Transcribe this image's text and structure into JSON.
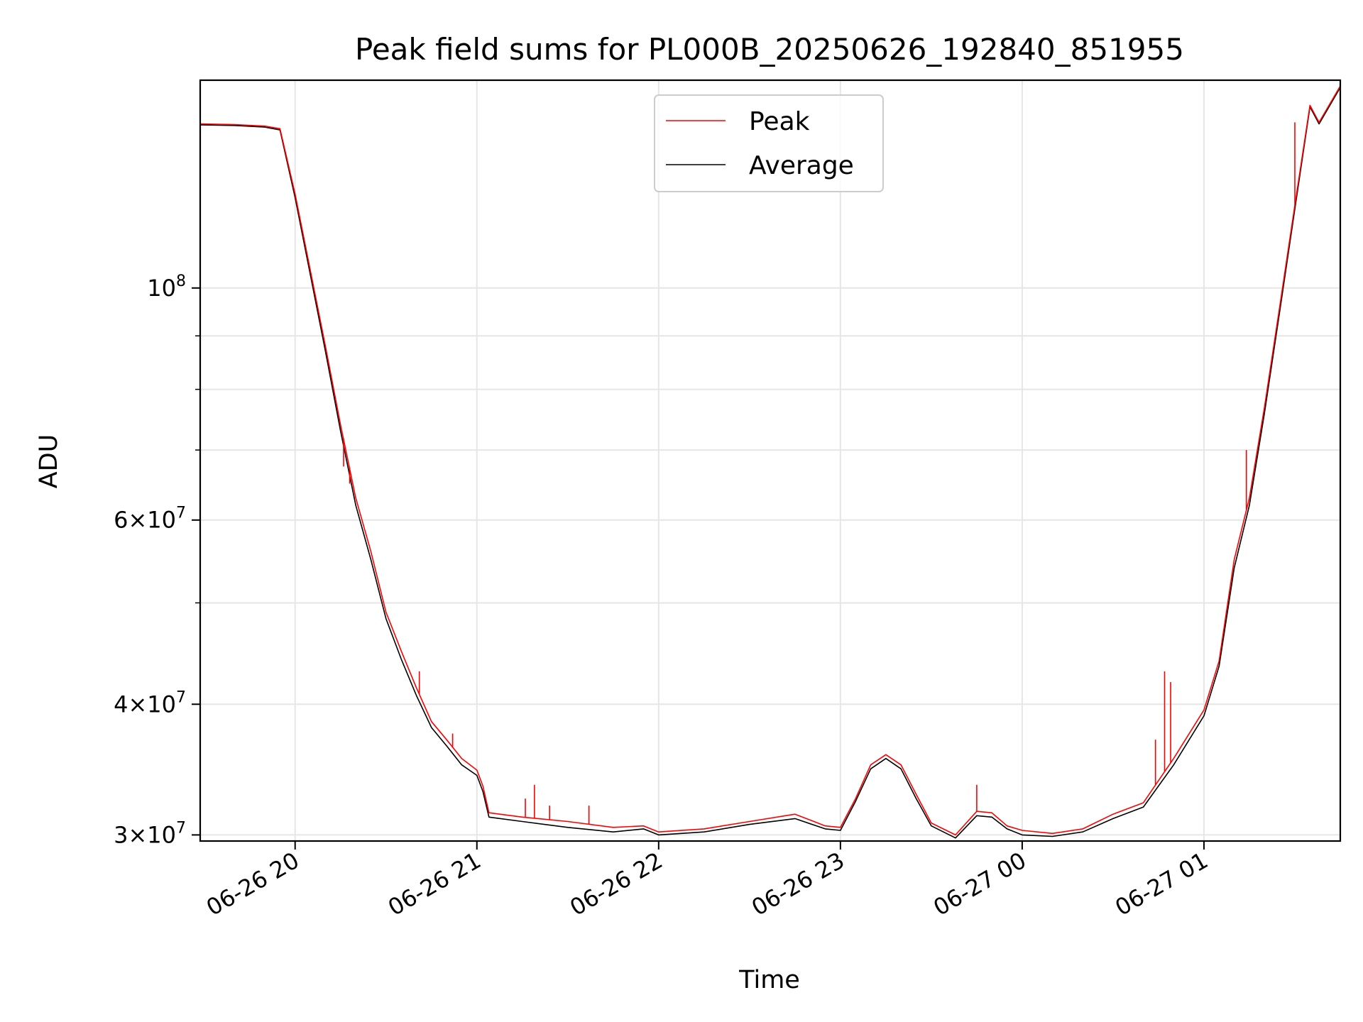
{
  "chart_data": {
    "type": "line",
    "title": "Peak field sums for PL000B_20250626_192840_851955",
    "xlabel": "Time",
    "ylabel": "ADU",
    "yscale": "log",
    "grid": true,
    "legend_position": "upper center",
    "x_range": [
      "2025-06-26 19:28:40",
      "2025-06-27 01:45:00"
    ],
    "ylim": [
      29600000,
      158000000
    ],
    "x_ticks": [
      {
        "time": "2025-06-26 20:00",
        "label": "06-26 20"
      },
      {
        "time": "2025-06-26 21:00",
        "label": "06-26 21"
      },
      {
        "time": "2025-06-26 22:00",
        "label": "06-26 22"
      },
      {
        "time": "2025-06-26 23:00",
        "label": "06-26 23"
      },
      {
        "time": "2025-06-27 00:00",
        "label": "06-27 00"
      },
      {
        "time": "2025-06-27 01:00",
        "label": "06-27 01"
      }
    ],
    "y_ticks": [
      {
        "value": 30000000,
        "base": "3",
        "exp": "7"
      },
      {
        "value": 40000000,
        "base": "4",
        "exp": "7"
      },
      {
        "value": 60000000,
        "base": "6",
        "exp": "7"
      },
      {
        "value": 100000000,
        "base": "",
        "exp": "8"
      }
    ],
    "y_minor_ticks": [
      50000000,
      70000000,
      80000000,
      90000000
    ],
    "series": [
      {
        "name": "Peak",
        "color": "#ff0000",
        "points": [
          [
            "2025-06-26 19:28:40",
            143.5
          ],
          [
            "2025-06-26 19:40",
            143.3
          ],
          [
            "2025-06-26 19:50",
            142.8
          ],
          [
            "2025-06-26 19:55",
            142.0
          ],
          [
            "2025-06-26 20:00",
            123
          ],
          [
            "2025-06-26 20:05",
            104
          ],
          [
            "2025-06-26 20:10",
            88
          ],
          [
            "2025-06-26 20:15",
            74
          ],
          [
            "2025-06-26 20:20",
            63
          ],
          [
            "2025-06-26 20:25",
            56
          ],
          [
            "2025-06-26 20:30",
            49
          ],
          [
            "2025-06-26 20:35",
            45
          ],
          [
            "2025-06-26 20:40",
            41.5
          ],
          [
            "2025-06-26 20:45",
            38.5
          ],
          [
            "2025-06-26 20:50",
            37.0
          ],
          [
            "2025-06-26 20:55",
            35.5
          ],
          [
            "2025-06-26 21:00",
            34.6
          ],
          [
            "2025-06-26 21:02",
            33.4
          ],
          [
            "2025-06-26 21:04",
            31.5
          ],
          [
            "2025-06-26 21:15",
            31.2
          ],
          [
            "2025-06-26 21:30",
            30.9
          ],
          [
            "2025-06-26 21:45",
            30.5
          ],
          [
            "2025-06-26 21:55",
            30.6
          ],
          [
            "2025-06-26 22:00",
            30.2
          ],
          [
            "2025-06-26 22:15",
            30.4
          ],
          [
            "2025-06-26 22:30",
            30.9
          ],
          [
            "2025-06-26 22:45",
            31.4
          ],
          [
            "2025-06-26 22:55",
            30.6
          ],
          [
            "2025-06-26 23:00",
            30.5
          ],
          [
            "2025-06-26 23:05",
            32.5
          ],
          [
            "2025-06-26 23:10",
            35.0
          ],
          [
            "2025-06-26 23:15",
            35.8
          ],
          [
            "2025-06-26 23:20",
            35.0
          ],
          [
            "2025-06-26 23:25",
            32.8
          ],
          [
            "2025-06-26 23:30",
            30.8
          ],
          [
            "2025-06-26 23:38",
            30.0
          ],
          [
            "2025-06-26 23:45",
            31.6
          ],
          [
            "2025-06-26 23:50",
            31.5
          ],
          [
            "2025-06-26 23:55",
            30.6
          ],
          [
            "2025-06-27 00:00",
            30.3
          ],
          [
            "2025-06-27 00:10",
            30.1
          ],
          [
            "2025-06-27 00:20",
            30.4
          ],
          [
            "2025-06-27 00:30",
            31.4
          ],
          [
            "2025-06-27 00:40",
            32.2
          ],
          [
            "2025-06-27 00:50",
            35.5
          ],
          [
            "2025-06-27 01:00",
            39.5
          ],
          [
            "2025-06-27 01:05",
            44.0
          ],
          [
            "2025-06-27 01:10",
            55.0
          ],
          [
            "2025-06-27 01:15",
            63.0
          ],
          [
            "2025-06-27 01:20",
            77.0
          ],
          [
            "2025-06-27 01:25",
            96.0
          ],
          [
            "2025-06-27 01:30",
            120.0
          ],
          [
            "2025-06-27 01:35",
            149.5
          ],
          [
            "2025-06-27 01:38",
            144.0
          ],
          [
            "2025-06-27 01:45",
            156.0
          ]
        ],
        "spikes": [
          [
            "2025-06-26 20:16",
            67.5
          ],
          [
            "2025-06-26 20:18",
            65.0
          ],
          [
            "2025-06-26 20:41",
            43.0
          ],
          [
            "2025-06-26 20:52",
            37.5
          ],
          [
            "2025-06-26 21:16",
            32.5
          ],
          [
            "2025-06-26 21:19",
            33.5
          ],
          [
            "2025-06-26 21:24",
            32.0
          ],
          [
            "2025-06-26 21:37",
            32.0
          ],
          [
            "2025-06-26 23:45",
            33.5
          ],
          [
            "2025-06-27 00:44",
            37.0
          ],
          [
            "2025-06-27 00:47",
            43.0
          ],
          [
            "2025-06-27 00:49",
            42.0
          ],
          [
            "2025-06-27 01:14",
            70.0
          ],
          [
            "2025-06-27 01:30",
            144.0
          ]
        ]
      },
      {
        "name": "Average",
        "color": "#000000",
        "points": [
          [
            "2025-06-26 19:28:40",
            143.2
          ],
          [
            "2025-06-26 19:40",
            143.0
          ],
          [
            "2025-06-26 19:50",
            142.5
          ],
          [
            "2025-06-26 19:55",
            141.6
          ],
          [
            "2025-06-26 20:00",
            122
          ],
          [
            "2025-06-26 20:05",
            103
          ],
          [
            "2025-06-26 20:10",
            87
          ],
          [
            "2025-06-26 20:15",
            73
          ],
          [
            "2025-06-26 20:20",
            62
          ],
          [
            "2025-06-26 20:25",
            55
          ],
          [
            "2025-06-26 20:30",
            48.3
          ],
          [
            "2025-06-26 20:35",
            44.2
          ],
          [
            "2025-06-26 20:40",
            40.8
          ],
          [
            "2025-06-26 20:45",
            38.0
          ],
          [
            "2025-06-26 20:50",
            36.5
          ],
          [
            "2025-06-26 20:55",
            35.0
          ],
          [
            "2025-06-26 21:00",
            34.2
          ],
          [
            "2025-06-26 21:02",
            33.0
          ],
          [
            "2025-06-26 21:04",
            31.2
          ],
          [
            "2025-06-26 21:15",
            30.9
          ],
          [
            "2025-06-26 21:30",
            30.5
          ],
          [
            "2025-06-26 21:45",
            30.2
          ],
          [
            "2025-06-26 21:55",
            30.4
          ],
          [
            "2025-06-26 22:00",
            30.0
          ],
          [
            "2025-06-26 22:15",
            30.2
          ],
          [
            "2025-06-26 22:30",
            30.7
          ],
          [
            "2025-06-26 22:45",
            31.1
          ],
          [
            "2025-06-26 22:55",
            30.4
          ],
          [
            "2025-06-26 23:00",
            30.3
          ],
          [
            "2025-06-26 23:05",
            32.3
          ],
          [
            "2025-06-26 23:10",
            34.7
          ],
          [
            "2025-06-26 23:15",
            35.5
          ],
          [
            "2025-06-26 23:20",
            34.7
          ],
          [
            "2025-06-26 23:25",
            32.5
          ],
          [
            "2025-06-26 23:30",
            30.6
          ],
          [
            "2025-06-26 23:38",
            29.8
          ],
          [
            "2025-06-26 23:45",
            31.3
          ],
          [
            "2025-06-26 23:50",
            31.2
          ],
          [
            "2025-06-26 23:55",
            30.4
          ],
          [
            "2025-06-27 00:00",
            30.0
          ],
          [
            "2025-06-27 00:10",
            29.9
          ],
          [
            "2025-06-27 00:20",
            30.2
          ],
          [
            "2025-06-27 00:30",
            31.1
          ],
          [
            "2025-06-27 00:40",
            31.9
          ],
          [
            "2025-06-27 00:50",
            35.0
          ],
          [
            "2025-06-27 01:00",
            39.0
          ],
          [
            "2025-06-27 01:05",
            43.5
          ],
          [
            "2025-06-27 01:10",
            54.0
          ],
          [
            "2025-06-27 01:15",
            62.0
          ],
          [
            "2025-06-27 01:20",
            76.0
          ],
          [
            "2025-06-27 01:25",
            95.0
          ],
          [
            "2025-06-27 01:30",
            119.0
          ],
          [
            "2025-06-27 01:35",
            149.0
          ],
          [
            "2025-06-27 01:38",
            143.5
          ],
          [
            "2025-06-27 01:45",
            155.5
          ]
        ]
      }
    ]
  }
}
